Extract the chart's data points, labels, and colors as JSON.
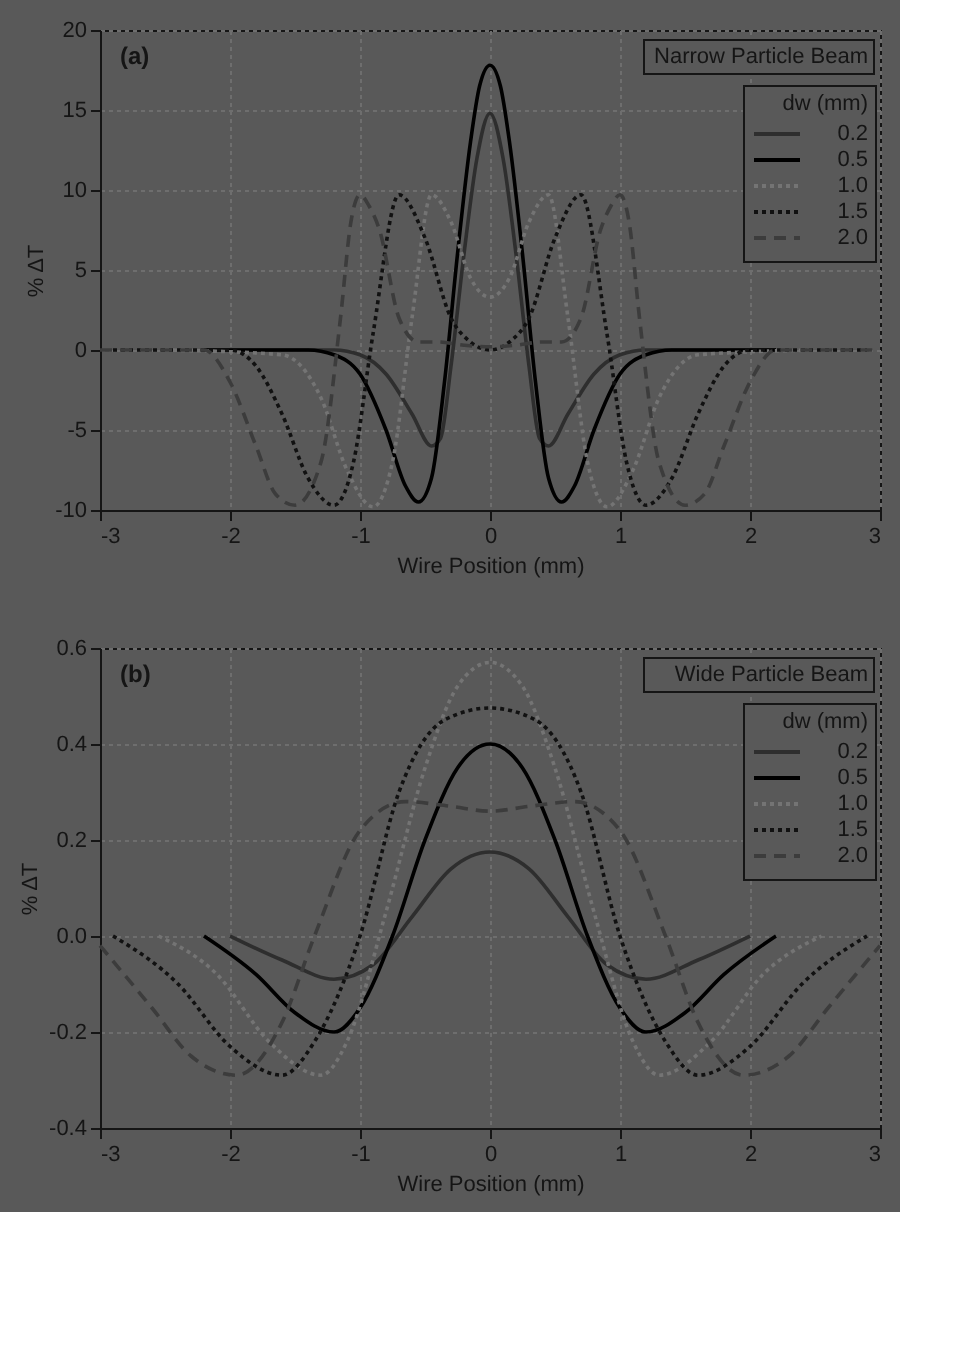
{
  "chart_data": [
    {
      "type": "line",
      "xlabel": "Wire Position (mm)",
      "ylabel": "% ΔT",
      "legend_title": "dw (mm)",
      "annotations": [
        "(a)",
        "Narrow Particle Beam"
      ],
      "xlim": [
        -3,
        3
      ],
      "xticks": [
        -3,
        -2,
        -1,
        0,
        1,
        2,
        3
      ],
      "ylim": [
        -10,
        20
      ],
      "yticks": [
        -10,
        -5,
        0,
        5,
        10,
        15,
        20
      ],
      "grid": true,
      "legend": "top right",
      "series": [
        {
          "name": "0.2",
          "color": "#2e2e2e",
          "line_style": "solid",
          "x": [
            -2.2,
            -1.2,
            -1.0,
            -0.8,
            -0.6,
            -0.45,
            -0.38,
            -0.3,
            -0.2,
            -0.1,
            0,
            0.1,
            0.2,
            0.3,
            0.38,
            0.45,
            0.6,
            0.8,
            1.0,
            1.2,
            2.2
          ],
          "values": [
            0,
            0,
            -0.3,
            -1.5,
            -4,
            -6,
            -5.5,
            -1,
            6,
            12,
            14.8,
            12,
            6,
            -1,
            -5.5,
            -6,
            -4,
            -1.5,
            -0.3,
            0,
            0
          ]
        },
        {
          "name": "0.5",
          "color": "#000000",
          "line_style": "solid",
          "x": [
            -2.2,
            -1.4,
            -1.2,
            -1.0,
            -0.8,
            -0.65,
            -0.55,
            -0.45,
            -0.35,
            -0.25,
            -0.15,
            -0.08,
            0,
            0.08,
            0.15,
            0.25,
            0.35,
            0.45,
            0.55,
            0.65,
            0.8,
            1.0,
            1.2,
            1.4,
            2.2
          ],
          "values": [
            0,
            0,
            -0.3,
            -1.5,
            -5,
            -8.5,
            -9.5,
            -8,
            -2,
            6,
            13,
            16.5,
            17.8,
            16.5,
            13,
            6,
            -2,
            -8,
            -9.5,
            -8.5,
            -5,
            -1.5,
            -0.3,
            0,
            0
          ]
        },
        {
          "name": "1.0",
          "color": "#747474",
          "line_style": "dotted",
          "x": [
            -2.5,
            -1.6,
            -1.3,
            -1.1,
            -0.9,
            -0.75,
            -0.6,
            -0.45,
            -0.3,
            -0.15,
            0,
            0.15,
            0.3,
            0.45,
            0.6,
            0.75,
            0.9,
            1.1,
            1.3,
            1.6,
            2.5
          ],
          "values": [
            0,
            -0.3,
            -3,
            -7.5,
            -9.8,
            -7,
            2,
            9.7,
            8,
            4.5,
            3.3,
            4.5,
            8,
            9.7,
            2,
            -7,
            -9.8,
            -7.5,
            -3,
            -0.3,
            0
          ]
        },
        {
          "name": "1.5",
          "color": "#111111",
          "line_style": "dotted",
          "x": [
            -2.9,
            -2.0,
            -1.8,
            -1.6,
            -1.4,
            -1.2,
            -1.05,
            -0.9,
            -0.7,
            -0.5,
            -0.3,
            -0.15,
            0,
            0.15,
            0.3,
            0.5,
            0.7,
            0.9,
            1.05,
            1.2,
            1.4,
            1.6,
            1.8,
            2.0,
            2.9
          ],
          "values": [
            0,
            0,
            -1,
            -4,
            -8,
            -9.7,
            -7,
            1,
            9.7,
            7,
            2,
            0.5,
            0,
            0.5,
            2,
            7,
            9.7,
            1,
            -7,
            -9.7,
            -8,
            -4,
            -1,
            0,
            0
          ]
        },
        {
          "name": "2.0",
          "color": "#3c3c3c",
          "line_style": "dashed",
          "x": [
            -3,
            -2.2,
            -2.0,
            -1.8,
            -1.65,
            -1.5,
            -1.3,
            -1.15,
            -1.07,
            -1.0,
            -0.93,
            -0.85,
            -0.7,
            -0.55,
            -0.4,
            -0.2,
            0,
            0.2,
            0.4,
            0.55,
            0.7,
            0.85,
            0.93,
            1.0,
            1.07,
            1.15,
            1.3,
            1.5,
            1.65,
            1.8,
            2.0,
            2.2,
            3
          ],
          "values": [
            0,
            0,
            -2,
            -6,
            -9,
            -9.7,
            -7,
            2,
            8,
            9.7,
            9,
            7.5,
            2,
            0.5,
            0.5,
            0.3,
            0.2,
            0.3,
            0.5,
            0.5,
            2,
            7.5,
            9,
            9.7,
            8,
            2,
            -7,
            -9.7,
            -9,
            -6,
            -2,
            0,
            0
          ]
        }
      ]
    },
    {
      "type": "line",
      "xlabel": "Wire Position (mm)",
      "ylabel": "% ΔT",
      "legend_title": "dw (mm)",
      "annotations": [
        "(b)",
        "Wide Particle Beam"
      ],
      "xlim": [
        -3,
        3
      ],
      "xticks": [
        -3,
        -2,
        -1,
        0,
        1,
        2,
        3
      ],
      "ylim": [
        -0.4,
        0.6
      ],
      "yticks": [
        -0.4,
        -0.2,
        {
          "value": 0,
          "label": "0.0"
        },
        0.2,
        0.4,
        0.6
      ],
      "grid": true,
      "legend": "top right",
      "series": [
        {
          "name": "0.2",
          "color": "#2e2e2e",
          "line_style": "solid",
          "x": [
            -2,
            -1.6,
            -1.2,
            -0.9,
            -0.6,
            -0.3,
            0,
            0.3,
            0.6,
            0.9,
            1.2,
            1.6,
            2
          ],
          "values": [
            0,
            -0.05,
            -0.09,
            -0.06,
            0.04,
            0.14,
            0.175,
            0.14,
            0.04,
            -0.06,
            -0.09,
            -0.05,
            0
          ]
        },
        {
          "name": "0.5",
          "color": "#000000",
          "line_style": "solid",
          "x": [
            -2.2,
            -1.8,
            -1.5,
            -1.2,
            -1.0,
            -0.75,
            -0.5,
            -0.25,
            0,
            0.25,
            0.5,
            0.75,
            1.0,
            1.2,
            1.5,
            1.8,
            2.2
          ],
          "values": [
            0,
            -0.08,
            -0.16,
            -0.2,
            -0.15,
            0,
            0.2,
            0.35,
            0.4,
            0.35,
            0.2,
            0,
            -0.15,
            -0.2,
            -0.16,
            -0.08,
            0
          ]
        },
        {
          "name": "1.0",
          "color": "#747474",
          "line_style": "dotted",
          "x": [
            -2.55,
            -2.1,
            -1.7,
            -1.3,
            -1.1,
            -0.8,
            -0.5,
            -0.25,
            0,
            0.25,
            0.5,
            0.8,
            1.1,
            1.3,
            1.7,
            2.1,
            2.55
          ],
          "values": [
            0,
            -0.08,
            -0.22,
            -0.29,
            -0.22,
            0.05,
            0.35,
            0.52,
            0.57,
            0.52,
            0.35,
            0.05,
            -0.22,
            -0.29,
            -0.22,
            -0.08,
            0
          ]
        },
        {
          "name": "1.5",
          "color": "#111111",
          "line_style": "dotted",
          "x": [
            -2.9,
            -2.4,
            -2.0,
            -1.6,
            -1.35,
            -1.0,
            -0.7,
            -0.35,
            0,
            0.35,
            0.7,
            1.0,
            1.35,
            1.6,
            2.0,
            2.4,
            2.9
          ],
          "values": [
            0,
            -0.1,
            -0.23,
            -0.29,
            -0.22,
            0,
            0.3,
            0.45,
            0.475,
            0.45,
            0.3,
            0,
            -0.22,
            -0.29,
            -0.23,
            -0.1,
            0
          ]
        },
        {
          "name": "2.0",
          "color": "#3c3c3c",
          "line_style": "dashed",
          "x": [
            -3,
            -2.6,
            -2.3,
            -1.95,
            -1.6,
            -1.35,
            -1.0,
            -0.65,
            -0.3,
            0,
            0.3,
            0.65,
            1.0,
            1.35,
            1.6,
            1.95,
            2.3,
            2.6,
            3
          ],
          "values": [
            -0.02,
            -0.15,
            -0.25,
            -0.29,
            -0.18,
            0,
            0.22,
            0.28,
            0.27,
            0.26,
            0.27,
            0.28,
            0.22,
            0,
            -0.18,
            -0.29,
            -0.25,
            -0.15,
            -0.02
          ]
        }
      ]
    }
  ]
}
